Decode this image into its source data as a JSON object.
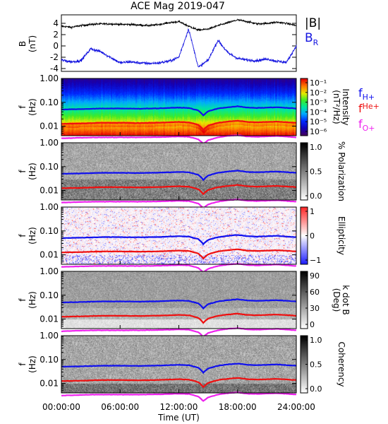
{
  "title": "ACE Mag 2019-047",
  "colors": {
    "btot": "#000000",
    "br": "#1515e0",
    "fH": "#1010ee",
    "fHe": "#ee1010",
    "fO": "#ee22ee"
  },
  "legend_top": {
    "btot": "|B|",
    "br_base": "B",
    "br_sub": "R"
  },
  "legend_lines": [
    {
      "base": "f",
      "sub": "H+",
      "color_key": "fH"
    },
    {
      "base": "f",
      "sub": "He+",
      "color_key": "fHe"
    },
    {
      "base": "f",
      "sub": "O+",
      "color_key": "fO"
    }
  ],
  "x_ticks": [
    "00:00:00",
    "06:00:00",
    "12:00:00",
    "18:00:00",
    "24:00:00"
  ],
  "xlabel": "Time (UT)",
  "chart_data": [
    {
      "type": "line",
      "ylabel_main": "B",
      "ylabel_unit": "(nT)",
      "ylim": [
        -4.5,
        5.5
      ],
      "y_ticks": [
        "4",
        "2",
        "0",
        "-2",
        "-4"
      ],
      "x_hours": [
        0,
        1,
        2,
        3,
        4,
        5,
        6,
        7,
        8,
        9,
        10,
        11,
        12,
        13,
        14,
        15,
        16,
        17,
        18,
        19,
        20,
        21,
        22,
        23,
        24
      ],
      "series": [
        {
          "name": "|B|",
          "values": [
            3.5,
            3.3,
            3.6,
            3.8,
            3.9,
            3.9,
            3.8,
            3.8,
            3.7,
            3.6,
            3.8,
            4.1,
            4.3,
            3.5,
            2.8,
            3.0,
            3.6,
            4.1,
            4.6,
            4.3,
            3.9,
            4.0,
            4.2,
            4.0,
            3.6
          ]
        },
        {
          "name": "B_R",
          "values": [
            -2.5,
            -2.8,
            -2.6,
            -0.5,
            -1.0,
            -2.0,
            -3.0,
            -2.8,
            -3.0,
            -3.1,
            -3.0,
            -2.7,
            -2.0,
            3.0,
            -3.8,
            -2.5,
            1.0,
            -1.2,
            -2.2,
            -2.5,
            -2.6,
            -2.3,
            -2.7,
            -2.9,
            0.0
          ]
        }
      ]
    },
    {
      "type": "heatmap",
      "ylabel_main": "f",
      "ylabel_unit": "(Hz)",
      "y_scale": "log",
      "ylim": [
        0.004,
        1.0
      ],
      "y_ticks": [
        "1.00",
        "0.10",
        "0.01"
      ],
      "colorbar": {
        "label": "Intensity",
        "label2": "(nT²/Hz)",
        "scale": "log",
        "ticks": [
          "10⁻¹",
          "10⁻²",
          "10⁻³",
          "10⁻⁴",
          "10⁻⁵",
          "10⁻⁶"
        ]
      }
    },
    {
      "type": "heatmap",
      "ylabel_main": "f",
      "ylabel_unit": "(Hz)",
      "y_scale": "log",
      "ylim": [
        0.004,
        1.0
      ],
      "y_ticks": [
        "1.00",
        "0.10",
        "0.01"
      ],
      "colorbar": {
        "label": "% Polarization",
        "scale": "linear",
        "ticks": [
          "1.0",
          "0.5",
          "0.0"
        ]
      }
    },
    {
      "type": "heatmap",
      "ylabel_main": "f",
      "ylabel_unit": "(Hz)",
      "y_scale": "log",
      "ylim": [
        0.004,
        1.0
      ],
      "y_ticks": [
        "1.00",
        "0.10",
        "0.01"
      ],
      "colorbar": {
        "label": "Ellipticity",
        "scale": "linear",
        "ticks": [
          "1",
          "0",
          "−1"
        ]
      }
    },
    {
      "type": "heatmap",
      "ylabel_main": "f",
      "ylabel_unit": "(Hz)",
      "y_scale": "log",
      "ylim": [
        0.004,
        1.0
      ],
      "y_ticks": [
        "1.00",
        "0.10",
        "0.01"
      ],
      "colorbar": {
        "label": "k dot B",
        "label2": "(Deg)",
        "scale": "linear",
        "ticks": [
          "90",
          "60",
          "30",
          "0"
        ]
      }
    },
    {
      "type": "heatmap",
      "ylabel_main": "f",
      "ylabel_unit": "(Hz)",
      "y_scale": "log",
      "ylim": [
        0.004,
        1.0
      ],
      "y_ticks": [
        "1.00",
        "0.10",
        "0.01"
      ],
      "colorbar": {
        "label": "Coherency",
        "scale": "linear",
        "ticks": [
          "1.0",
          "0.5",
          "0.0"
        ]
      }
    }
  ],
  "gyro_freq_hz": {
    "x_hours": [
      0,
      2,
      4,
      6,
      8,
      10,
      12,
      13,
      14,
      14.5,
      15,
      16,
      17,
      18,
      19,
      20,
      22,
      24
    ],
    "fH": [
      0.05,
      0.052,
      0.055,
      0.055,
      0.054,
      0.056,
      0.06,
      0.058,
      0.045,
      0.028,
      0.042,
      0.055,
      0.062,
      0.068,
      0.06,
      0.058,
      0.062,
      0.055
    ],
    "fHe": [
      0.0125,
      0.013,
      0.0138,
      0.0138,
      0.0135,
      0.014,
      0.015,
      0.0145,
      0.0112,
      0.007,
      0.0105,
      0.0138,
      0.0155,
      0.017,
      0.015,
      0.0145,
      0.0155,
      0.0138
    ],
    "fO": [
      0.0031,
      0.0033,
      0.0034,
      0.0034,
      0.0034,
      0.0035,
      0.0037,
      0.0036,
      0.0028,
      0.0018,
      0.0026,
      0.0034,
      0.0039,
      0.0042,
      0.0037,
      0.0036,
      0.0039,
      0.0034
    ]
  }
}
